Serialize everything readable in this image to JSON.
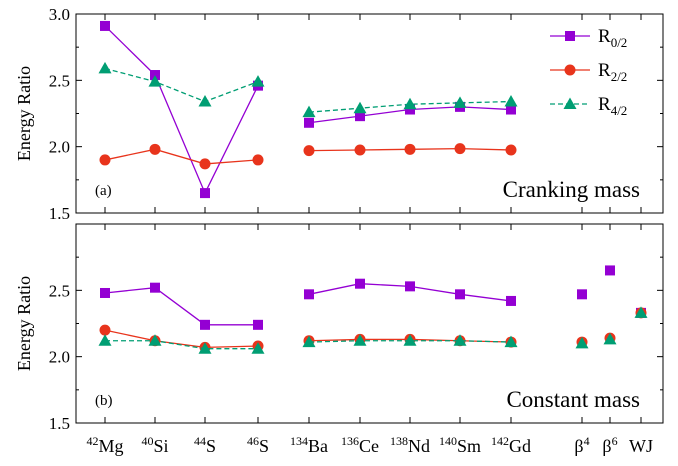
{
  "chart_data": {
    "type": "line",
    "categories": [
      "42Mg",
      "40Si",
      "44S",
      "46S",
      "134Ba",
      "136Ce",
      "138Nd",
      "140Sm",
      "142Gd",
      "β4",
      "β6",
      "WJ"
    ],
    "x_labels": [
      {
        "sup": "42",
        "base": "Mg"
      },
      {
        "sup": "40",
        "base": "Si"
      },
      {
        "sup": "44",
        "base": "S"
      },
      {
        "sup": "46",
        "base": "S"
      },
      {
        "sup": "134",
        "base": "Ba"
      },
      {
        "sup": "136",
        "base": "Ce"
      },
      {
        "sup": "138",
        "base": "Nd"
      },
      {
        "sup": "140",
        "base": "Sm"
      },
      {
        "sup": "142",
        "base": "Gd"
      },
      {
        "sup": "4",
        "base": "β",
        "sup_after": true
      },
      {
        "sup": "6",
        "base": "β",
        "sup_after": true
      },
      {
        "sup": "",
        "base": "WJ"
      }
    ],
    "legend": [
      {
        "base": "R",
        "sub": "0/2",
        "color": "#9400D3",
        "marker": "square",
        "dash": "solid"
      },
      {
        "base": "R",
        "sub": "2/2",
        "color": "#E8341C",
        "marker": "circle",
        "dash": "solid"
      },
      {
        "base": "R",
        "sub": "4/2",
        "color": "#009E73",
        "marker": "triangle",
        "dash": "dashed"
      }
    ],
    "legend_position": "top-right",
    "panels": [
      {
        "tag": "(a)",
        "caption": "Cranking mass",
        "ylabel": "Energy Ratio",
        "ylim": [
          1.5,
          3.0
        ],
        "yticks": [
          "1.5",
          "2.0",
          "2.5",
          "3.0"
        ],
        "show_legend": true,
        "series": [
          {
            "name": "R0/2",
            "values": [
              2.91,
              2.54,
              1.65,
              2.46,
              2.18,
              2.23,
              2.28,
              2.3,
              2.28,
              null,
              null,
              null
            ],
            "segments": [
              [
                0,
                3
              ],
              [
                4,
                8
              ]
            ]
          },
          {
            "name": "R2/2",
            "values": [
              1.9,
              1.98,
              1.87,
              1.9,
              1.97,
              1.975,
              1.98,
              1.985,
              1.975,
              null,
              null,
              null
            ],
            "segments": [
              [
                0,
                3
              ],
              [
                4,
                8
              ]
            ]
          },
          {
            "name": "R4/2",
            "values": [
              2.59,
              2.49,
              2.34,
              2.49,
              2.26,
              2.29,
              2.32,
              2.33,
              2.34,
              null,
              null,
              null
            ],
            "segments": [
              [
                0,
                3
              ],
              [
                4,
                8
              ]
            ]
          }
        ]
      },
      {
        "tag": "(b)",
        "caption": "Constant mass",
        "ylabel": "Energy Ratio",
        "ylim": [
          1.5,
          3.0
        ],
        "yticks": [
          "1.5",
          "2.0",
          "2.5",
          ""
        ],
        "show_legend": false,
        "series": [
          {
            "name": "R0/2",
            "values": [
              2.48,
              2.52,
              2.24,
              2.24,
              2.47,
              2.55,
              2.53,
              2.47,
              2.42,
              2.47,
              2.65,
              2.33
            ],
            "segments": [
              [
                0,
                3
              ],
              [
                4,
                8
              ]
            ]
          },
          {
            "name": "R2/2",
            "values": [
              2.2,
              2.12,
              2.07,
              2.08,
              2.12,
              2.13,
              2.13,
              2.12,
              2.11,
              2.11,
              2.14,
              2.33
            ],
            "segments": [
              [
                0,
                3
              ],
              [
                4,
                8
              ]
            ]
          },
          {
            "name": "R4/2",
            "values": [
              2.12,
              2.12,
              2.06,
              2.06,
              2.11,
              2.12,
              2.12,
              2.12,
              2.11,
              2.1,
              2.13,
              2.33
            ],
            "segments": [
              [
                0,
                3
              ],
              [
                4,
                8
              ]
            ]
          }
        ]
      }
    ]
  }
}
